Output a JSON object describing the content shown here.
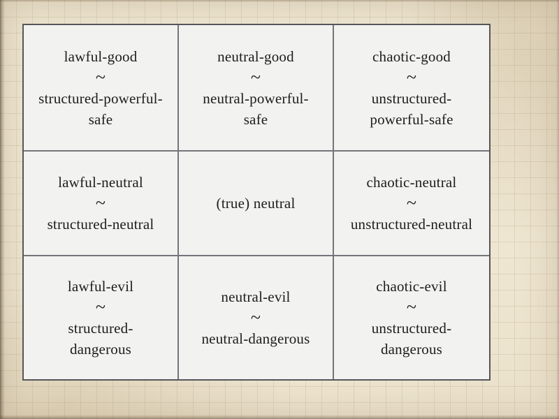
{
  "colors": {
    "paper_background": "#ECE3CD",
    "paper_grid_line": "#CFC3A8",
    "cell_background": "#F2F2F1",
    "outer_border": "#55565A",
    "inner_border": "#737579",
    "text": "#1D1D1D"
  },
  "alignment_grid": {
    "rows": 3,
    "columns": 3,
    "cells": [
      {
        "alignment": "lawful-good",
        "separator": "~",
        "equivalent": "structured-powerful-safe",
        "equivalent_lines": [
          "structured-powerful-",
          "safe"
        ]
      },
      {
        "alignment": "neutral-good",
        "separator": "~",
        "equivalent": "neutral-powerful-safe",
        "equivalent_lines": [
          "neutral-powerful-",
          "safe"
        ]
      },
      {
        "alignment": "chaotic-good",
        "separator": "~",
        "equivalent": "unstructured-powerful-safe",
        "equivalent_lines": [
          "unstructured-",
          "powerful-safe"
        ]
      },
      {
        "alignment": "lawful-neutral",
        "separator": "~",
        "equivalent": "structured-neutral",
        "equivalent_lines": [
          "structured-neutral"
        ]
      },
      {
        "alignment": "(true) neutral",
        "separator": "",
        "equivalent": "",
        "equivalent_lines": []
      },
      {
        "alignment": "chaotic-neutral",
        "separator": "~",
        "equivalent": "unstructured-neutral",
        "equivalent_lines": [
          "unstructured-neutral"
        ]
      },
      {
        "alignment": "lawful-evil",
        "separator": "~",
        "equivalent": "structured-dangerous",
        "equivalent_lines": [
          "structured-",
          "dangerous"
        ]
      },
      {
        "alignment": "neutral-evil",
        "separator": "~",
        "equivalent": "neutral-dangerous",
        "equivalent_lines": [
          "neutral-dangerous"
        ]
      },
      {
        "alignment": "chaotic-evil",
        "separator": "~",
        "equivalent": "unstructured-dangerous",
        "equivalent_lines": [
          "unstructured-",
          "dangerous"
        ]
      }
    ]
  }
}
